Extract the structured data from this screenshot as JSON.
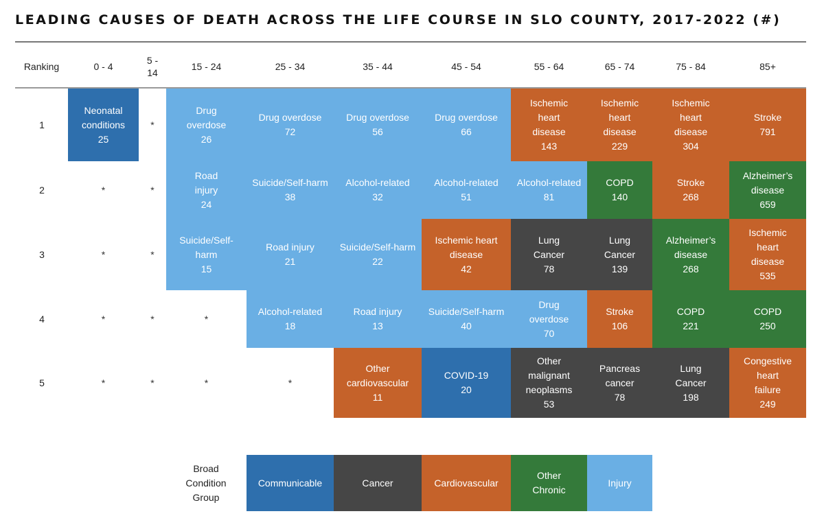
{
  "title": "LEADING CAUSES OF DEATH ACROSS THE LIFE COURSE IN SLO COUNTY, 2017-2022 (#)",
  "colors": {
    "Communicable": "#2e6fad",
    "Cancer": "#464646",
    "Cardiovascular": "#c5622a",
    "Other Chronic": "#347a3a",
    "Injury": "#6aafe4"
  },
  "chart_data": {
    "type": "table",
    "title": "LEADING CAUSES OF DEATH ACROSS THE LIFE COURSE IN SLO COUNTY, 2017-2022 (#)",
    "row_header": "Ranking",
    "columns": [
      "0 - 4",
      "5 - 14",
      "15 - 24",
      "25 - 34",
      "35 - 44",
      "45 - 54",
      "55 - 64",
      "65 - 74",
      "75 - 84",
      "85+"
    ],
    "rows": [
      {
        "rank": "1",
        "cells": [
          {
            "cause": "Neonatal conditions",
            "count": 25,
            "group": "Communicable"
          },
          {
            "cause": "*",
            "count": null,
            "group": null
          },
          {
            "cause": "Drug overdose",
            "count": 26,
            "group": "Injury"
          },
          {
            "cause": "Drug overdose",
            "count": 72,
            "group": "Injury"
          },
          {
            "cause": "Drug overdose",
            "count": 56,
            "group": "Injury"
          },
          {
            "cause": "Drug overdose",
            "count": 66,
            "group": "Injury"
          },
          {
            "cause": "Ischemic heart disease",
            "count": 143,
            "group": "Cardiovascular"
          },
          {
            "cause": "Ischemic heart disease",
            "count": 229,
            "group": "Cardiovascular"
          },
          {
            "cause": "Ischemic heart disease",
            "count": 304,
            "group": "Cardiovascular"
          },
          {
            "cause": "Stroke",
            "count": 791,
            "group": "Cardiovascular"
          }
        ]
      },
      {
        "rank": "2",
        "cells": [
          {
            "cause": "*",
            "count": null,
            "group": null
          },
          {
            "cause": "*",
            "count": null,
            "group": null
          },
          {
            "cause": "Road injury",
            "count": 24,
            "group": "Injury"
          },
          {
            "cause": "Suicide/Self-harm",
            "count": 38,
            "group": "Injury"
          },
          {
            "cause": "Alcohol-related",
            "count": 32,
            "group": "Injury"
          },
          {
            "cause": "Alcohol-related",
            "count": 51,
            "group": "Injury"
          },
          {
            "cause": "Alcohol-related",
            "count": 81,
            "group": "Injury"
          },
          {
            "cause": "COPD",
            "count": 140,
            "group": "Other Chronic"
          },
          {
            "cause": "Stroke",
            "count": 268,
            "group": "Cardiovascular"
          },
          {
            "cause": "Alzheimer’s disease",
            "count": 659,
            "group": "Other Chronic"
          }
        ]
      },
      {
        "rank": "3",
        "cells": [
          {
            "cause": "*",
            "count": null,
            "group": null
          },
          {
            "cause": "*",
            "count": null,
            "group": null
          },
          {
            "cause": "Suicide/Self-harm",
            "count": 15,
            "group": "Injury"
          },
          {
            "cause": "Road injury",
            "count": 21,
            "group": "Injury"
          },
          {
            "cause": "Suicide/Self-harm",
            "count": 22,
            "group": "Injury"
          },
          {
            "cause": "Ischemic heart disease",
            "count": 42,
            "group": "Cardiovascular"
          },
          {
            "cause": "Lung Cancer",
            "count": 78,
            "group": "Cancer"
          },
          {
            "cause": "Lung Cancer",
            "count": 139,
            "group": "Cancer"
          },
          {
            "cause": "Alzheimer’s disease",
            "count": 268,
            "group": "Other Chronic"
          },
          {
            "cause": "Ischemic heart disease",
            "count": 535,
            "group": "Cardiovascular"
          }
        ]
      },
      {
        "rank": "4",
        "cells": [
          {
            "cause": "*",
            "count": null,
            "group": null
          },
          {
            "cause": "*",
            "count": null,
            "group": null
          },
          {
            "cause": "*",
            "count": null,
            "group": null
          },
          {
            "cause": "Alcohol-related",
            "count": 18,
            "group": "Injury"
          },
          {
            "cause": "Road injury",
            "count": 13,
            "group": "Injury"
          },
          {
            "cause": "Suicide/Self-harm",
            "count": 40,
            "group": "Injury"
          },
          {
            "cause": "Drug overdose",
            "count": 70,
            "group": "Injury"
          },
          {
            "cause": "Stroke",
            "count": 106,
            "group": "Cardiovascular"
          },
          {
            "cause": "COPD",
            "count": 221,
            "group": "Other Chronic"
          },
          {
            "cause": "COPD",
            "count": 250,
            "group": "Other Chronic"
          }
        ]
      },
      {
        "rank": "5",
        "cells": [
          {
            "cause": "*",
            "count": null,
            "group": null
          },
          {
            "cause": "*",
            "count": null,
            "group": null
          },
          {
            "cause": "*",
            "count": null,
            "group": null
          },
          {
            "cause": "*",
            "count": null,
            "group": null
          },
          {
            "cause": "Other cardiovascular",
            "count": 11,
            "group": "Cardiovascular"
          },
          {
            "cause": "COVID-19",
            "count": 20,
            "group": "Communicable"
          },
          {
            "cause": "Other malignant neoplasms",
            "count": 53,
            "group": "Cancer"
          },
          {
            "cause": "Pancreas cancer",
            "count": 78,
            "group": "Cancer"
          },
          {
            "cause": "Lung Cancer",
            "count": 198,
            "group": "Cancer"
          },
          {
            "cause": "Congestive heart failure",
            "count": 249,
            "group": "Cardiovascular"
          }
        ]
      }
    ],
    "legend": {
      "title": "Broad Condition Group",
      "items": [
        "Communicable",
        "Cancer",
        "Cardiovascular",
        "Other Chronic",
        "Injury"
      ]
    }
  }
}
